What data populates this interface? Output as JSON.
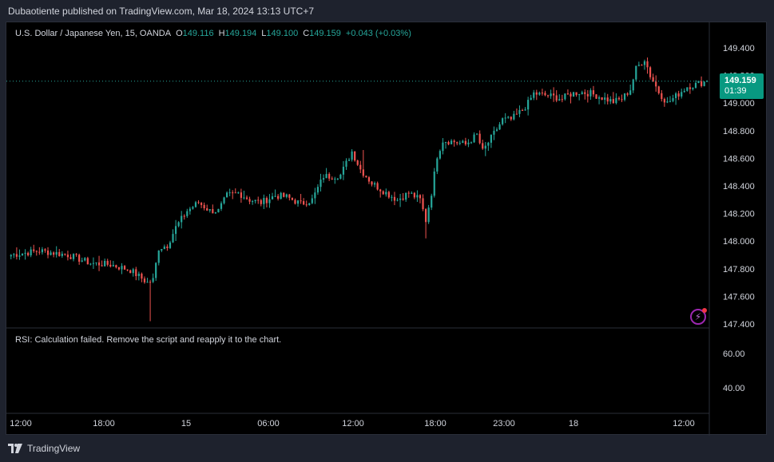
{
  "publisher_line": "Dubaotiente published on TradingView.com, Mar 18, 2024 13:13 UTC+7",
  "legend": {
    "symbol": "U.S. Dollar / Japanese Yen, 15, OANDA",
    "open_label": "O",
    "open": "149.116",
    "high_label": "H",
    "high": "149.194",
    "low_label": "L",
    "low": "149.100",
    "close_label": "C",
    "close": "149.159",
    "change": "+0.043 (+0.03%)"
  },
  "last_price": {
    "price": "149.159",
    "countdown": "01:39"
  },
  "rsi_message": "RSI: Calculation failed. Remove the script and reapply it to the chart.",
  "footer": {
    "brand": "TradingView"
  },
  "colors": {
    "up": "#26a69a",
    "down": "#ef5350",
    "background": "#000000",
    "accent": "#089981"
  },
  "chart_data": {
    "type": "candlestick",
    "price_axis": {
      "ticks": [
        "149.400",
        "149.200",
        "149.000",
        "148.800",
        "148.600",
        "148.400",
        "148.200",
        "148.000",
        "147.800",
        "147.600",
        "147.400"
      ],
      "range": [
        147.4,
        149.4
      ]
    },
    "rsi_axis": {
      "ticks": [
        "60.00",
        "40.00"
      ]
    },
    "time_axis": {
      "ticks": [
        "12:00",
        "18:00",
        "15",
        "06:00",
        "12:00",
        "18:00",
        "23:00",
        "18",
        "12:00"
      ]
    },
    "anchors": [
      [
        0,
        147.9
      ],
      [
        10,
        147.93
      ],
      [
        20,
        147.9
      ],
      [
        28,
        147.84
      ],
      [
        35,
        147.83
      ],
      [
        42,
        147.79
      ],
      [
        48,
        147.7
      ],
      [
        50,
        147.72
      ],
      [
        52,
        147.95
      ],
      [
        55,
        147.97
      ],
      [
        58,
        148.1
      ],
      [
        62,
        148.22
      ],
      [
        66,
        148.28
      ],
      [
        70,
        148.22
      ],
      [
        73,
        148.22
      ],
      [
        76,
        148.33
      ],
      [
        80,
        148.35
      ],
      [
        84,
        148.3
      ],
      [
        88,
        148.28
      ],
      [
        93,
        148.33
      ],
      [
        97,
        148.32
      ],
      [
        102,
        148.27
      ],
      [
        106,
        148.3
      ],
      [
        110,
        148.47
      ],
      [
        113,
        148.47
      ],
      [
        116,
        148.48
      ],
      [
        120,
        148.65
      ],
      [
        123,
        148.52
      ],
      [
        127,
        148.42
      ],
      [
        132,
        148.35
      ],
      [
        136,
        148.3
      ],
      [
        140,
        148.35
      ],
      [
        144,
        148.3
      ],
      [
        146,
        148.15
      ],
      [
        148,
        148.35
      ],
      [
        150,
        148.62
      ],
      [
        152,
        148.73
      ],
      [
        156,
        148.72
      ],
      [
        160,
        148.7
      ],
      [
        164,
        148.77
      ],
      [
        166,
        148.65
      ],
      [
        170,
        148.78
      ],
      [
        173,
        148.88
      ],
      [
        176,
        148.88
      ],
      [
        180,
        148.95
      ],
      [
        182,
        149.0
      ],
      [
        184,
        149.07
      ],
      [
        187,
        149.06
      ],
      [
        190,
        149.05
      ],
      [
        194,
        149.03
      ],
      [
        196,
        149.06
      ],
      [
        200,
        149.08
      ],
      [
        204,
        149.07
      ],
      [
        208,
        149.04
      ],
      [
        212,
        149.01
      ],
      [
        215,
        149.03
      ],
      [
        218,
        149.1
      ],
      [
        220,
        149.25
      ],
      [
        223,
        149.32
      ],
      [
        225,
        149.2
      ],
      [
        228,
        149.08
      ],
      [
        231,
        149.0
      ],
      [
        234,
        149.05
      ],
      [
        238,
        149.12
      ],
      [
        242,
        149.14
      ],
      [
        245,
        149.16
      ]
    ],
    "count": 246
  }
}
